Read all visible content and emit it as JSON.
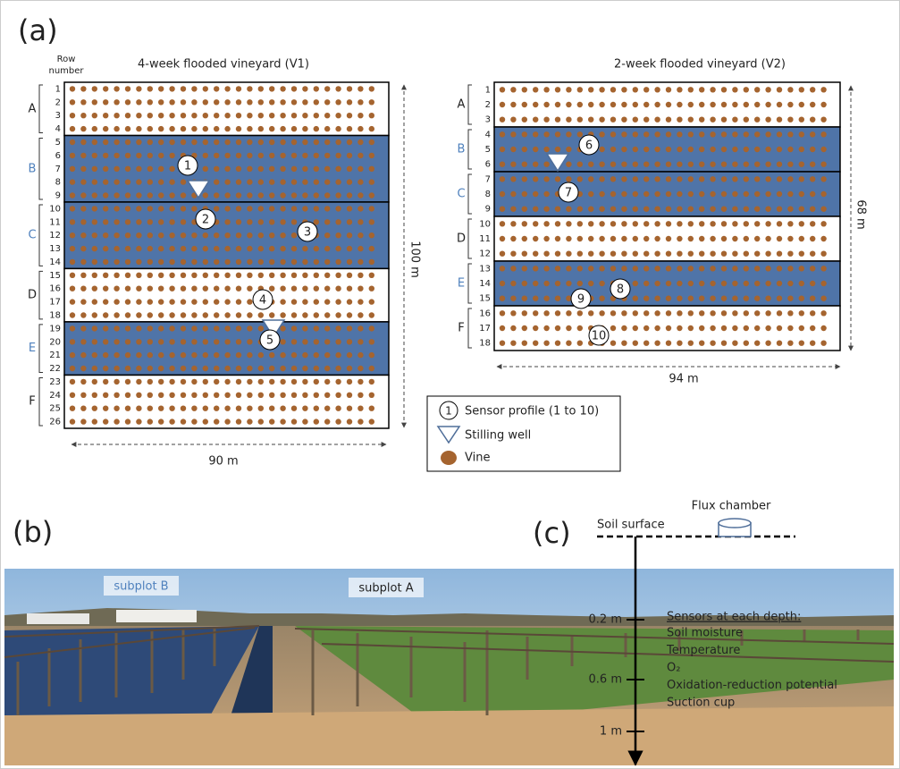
{
  "panel_a": {
    "label": "(a)",
    "row_header": [
      "Row",
      "number"
    ],
    "v1": {
      "title": "4-week flooded vineyard (V1)",
      "sections": [
        {
          "letter": "A",
          "flooded": false,
          "rows": [
            1,
            2,
            3,
            4
          ]
        },
        {
          "letter": "B",
          "flooded": true,
          "rows": [
            5,
            6,
            7,
            8,
            9
          ]
        },
        {
          "letter": "C",
          "flooded": true,
          "rows": [
            10,
            11,
            12,
            13,
            14
          ]
        },
        {
          "letter": "D",
          "flooded": false,
          "rows": [
            15,
            16,
            17,
            18
          ]
        },
        {
          "letter": "E",
          "flooded": true,
          "rows": [
            19,
            20,
            21,
            22
          ]
        },
        {
          "letter": "F",
          "flooded": false,
          "rows": [
            23,
            24,
            25,
            26
          ]
        }
      ],
      "sensors": [
        "1",
        "2",
        "3",
        "4",
        "5"
      ],
      "width": "90 m",
      "length": "100 m"
    },
    "v2": {
      "title": "2-week flooded vineyard (V2)",
      "sections": [
        {
          "letter": "A",
          "flooded": false,
          "rows": [
            1,
            2,
            3
          ]
        },
        {
          "letter": "B",
          "flooded": true,
          "rows": [
            4,
            5,
            6
          ]
        },
        {
          "letter": "C",
          "flooded": true,
          "rows": [
            7,
            8,
            9
          ]
        },
        {
          "letter": "D",
          "flooded": false,
          "rows": [
            10,
            11,
            12
          ]
        },
        {
          "letter": "E",
          "flooded": true,
          "rows": [
            13,
            14,
            15
          ]
        },
        {
          "letter": "F",
          "flooded": false,
          "rows": [
            16,
            17,
            18
          ]
        }
      ],
      "sensors": [
        "6",
        "7",
        "8",
        "9",
        "10"
      ],
      "width": "94 m",
      "length": "68 m"
    },
    "legend": {
      "sensor_symbol": "1",
      "sensor": "Sensor profile (1 to 10)",
      "well": "Stilling well",
      "vine": "Vine"
    }
  },
  "panel_b": {
    "label": "(b)",
    "subplot_b": "subplot B",
    "subplot_a": "subplot A"
  },
  "panel_c": {
    "label": "(c)",
    "chamber": "Flux chamber",
    "surface": "Soil surface",
    "depths": [
      "0.2 m",
      "0.6 m",
      "1 m"
    ],
    "sensors_title": "Sensors at each depth:",
    "sensors": [
      "Soil moisture",
      "Temperature",
      "O₂",
      "Oxidation-reduction potential",
      "Suction cup"
    ]
  }
}
